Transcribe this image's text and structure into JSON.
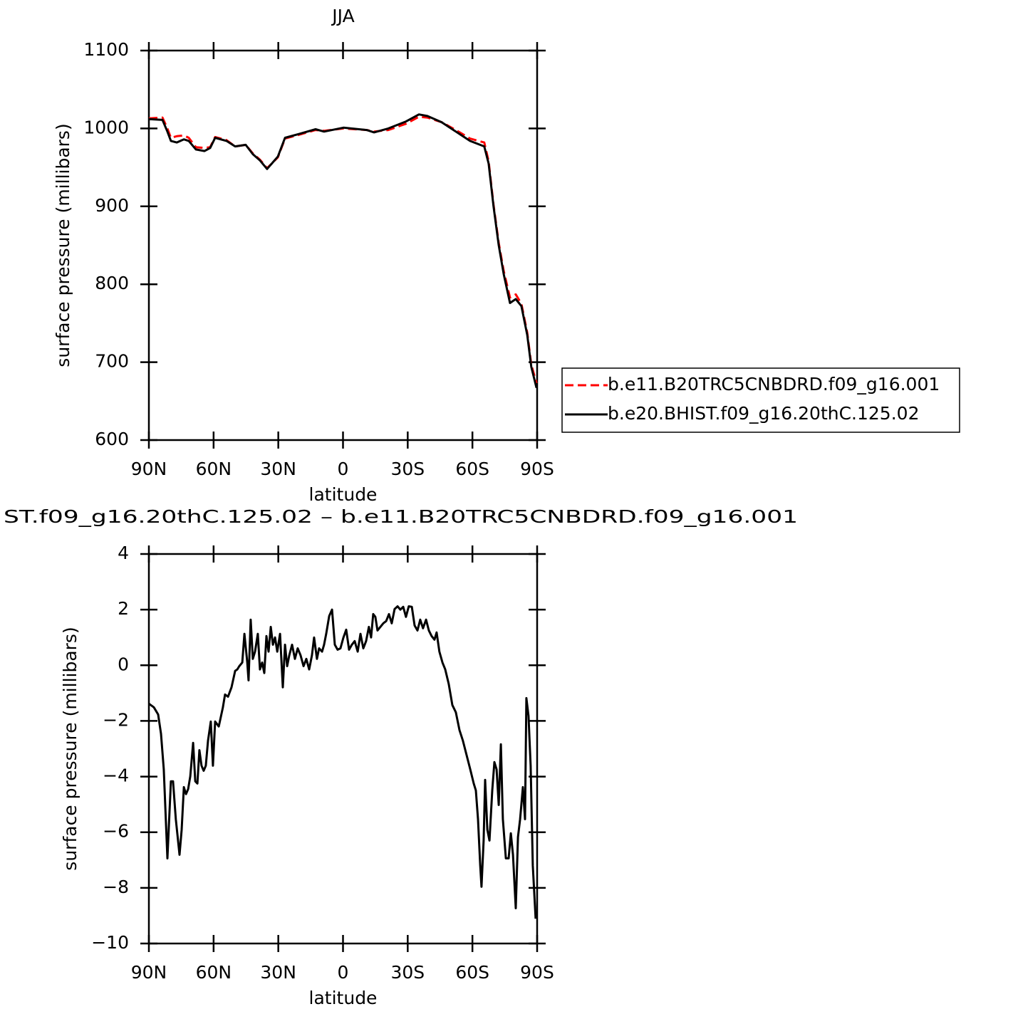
{
  "chart_data": [
    {
      "type": "line",
      "title": "JJA",
      "x_label": "latitude",
      "y_label": "surface pressure (millibars)",
      "xlim": [
        90,
        -90
      ],
      "ylim": [
        600,
        1100
      ],
      "xticks": [
        {
          "value": 90,
          "label": "90N"
        },
        {
          "value": 60,
          "label": "60N"
        },
        {
          "value": 30,
          "label": "30N"
        },
        0,
        {
          "value": -30,
          "label": "30S"
        },
        {
          "value": -60,
          "label": "60S"
        },
        {
          "value": -90,
          "label": "90S"
        }
      ],
      "yticks": [
        600,
        700,
        800,
        900,
        1000,
        1100
      ],
      "legend": "right",
      "x": [
        90,
        83.7,
        81.4,
        79.8,
        77.1,
        73.8,
        71.5,
        68.2,
        64.2,
        61.6,
        59.3,
        54,
        50,
        45.1,
        41.8,
        38.5,
        35.2,
        30.2,
        26.9,
        20.3,
        12.7,
        8.8,
        -0.2,
        -11,
        -14.4,
        -21,
        -29.2,
        -35.2,
        -39.1,
        -45.7,
        -52.3,
        -58.9,
        -65.5,
        -67.5,
        -69.8,
        -72.2,
        -74.5,
        -77.4,
        -80.1,
        -82.7,
        -85.4,
        -87.3,
        -89.7
      ],
      "series": [
        {
          "name": "b.e11.B20TRC5CNBDRD.f09_g16.001",
          "color": "#ff0000",
          "linestyle": "dashed",
          "values": [
            1013,
            1014,
            1000,
            988,
            990,
            991,
            988,
            976,
            975,
            976,
            989,
            985,
            977,
            979,
            968,
            960,
            949,
            963,
            987,
            992,
            998,
            997,
            1000,
            998,
            996,
            998,
            1006,
            1015,
            1014,
            1008,
            998,
            987,
            982,
            958,
            902,
            853,
            817,
            783,
            787,
            775,
            738,
            697,
            673
          ]
        },
        {
          "name": "b.e20.BHIST.f09_g16.20thC.125.02",
          "color": "#000000",
          "linestyle": "solid",
          "values": [
            1012,
            1011,
            996,
            984,
            982,
            986,
            984,
            973,
            971,
            975,
            988,
            984,
            977,
            979,
            967,
            959,
            948,
            964,
            988,
            993,
            999,
            996,
            1001,
            998,
            995,
            1000,
            1009,
            1018,
            1016,
            1008,
            996,
            984,
            977,
            955,
            900,
            850,
            813,
            776,
            781,
            772,
            735,
            694,
            667
          ]
        }
      ]
    },
    {
      "type": "line",
      "title": "ST.f09_g16.20thC.125.02 – b.e11.B20TRC5CNBDRD.f09_g16.001",
      "x_label": "latitude",
      "y_label": "surface pressure (millibars)",
      "xlim": [
        90,
        -90
      ],
      "ylim": [
        -10,
        4
      ],
      "xticks": [
        {
          "value": 90,
          "label": "90N"
        },
        {
          "value": 60,
          "label": "60N"
        },
        {
          "value": 30,
          "label": "30N"
        },
        0,
        {
          "value": -30,
          "label": "30S"
        },
        {
          "value": -60,
          "label": "60S"
        },
        {
          "value": -90,
          "label": "90S"
        }
      ],
      "yticks": [
        {
          "value": -10,
          "label": "−10"
        },
        {
          "value": -8,
          "label": "−8"
        },
        {
          "value": -6,
          "label": "−6"
        },
        {
          "value": -4,
          "label": "−4"
        },
        {
          "value": -2,
          "label": "−2"
        },
        0,
        2,
        4
      ],
      "x": [
        90,
        87.7,
        85.7,
        84.4,
        83.1,
        81.4,
        79.8,
        78.8,
        77.5,
        75.8,
        74.8,
        73.8,
        72.8,
        71.8,
        70.8,
        69.5,
        68.5,
        67.5,
        66.6,
        65.6,
        64.6,
        63.6,
        62.6,
        61.3,
        60.3,
        59.3,
        57.6,
        55.7,
        54.7,
        53.3,
        51.7,
        50.0,
        49.0,
        48.1,
        46.7,
        45.7,
        44.4,
        43.8,
        42.8,
        41.8,
        40.8,
        39.5,
        38.5,
        37.5,
        36.5,
        35.5,
        34.5,
        33.5,
        32.5,
        31.5,
        30.5,
        29.2,
        27.9,
        26.9,
        25.9,
        24.9,
        23.6,
        22.3,
        21.0,
        19.7,
        18.3,
        17.0,
        15.7,
        14.4,
        13.4,
        12.1,
        11.1,
        9.7,
        8.8,
        7.8,
        6.4,
        5.1,
        3.8,
        2.5,
        1.2,
        -0.2,
        -1.5,
        -2.8,
        -4.1,
        -5.4,
        -6.8,
        -8.1,
        -9.4,
        -10.7,
        -12.0,
        -13.0,
        -14.0,
        -15.0,
        -16.0,
        -17.3,
        -18.7,
        -20.0,
        -21.3,
        -22.6,
        -23.9,
        -25.3,
        -26.6,
        -27.9,
        -29.2,
        -30.5,
        -31.9,
        -33.2,
        -34.5,
        -35.8,
        -37.1,
        -38.5,
        -39.8,
        -41.1,
        -42.4,
        -43.4,
        -44.7,
        -46.1,
        -47.4,
        -49.0,
        -50.7,
        -52.3,
        -54.0,
        -55.6,
        -57.3,
        -59.0,
        -60.6,
        -61.6,
        -62.6,
        -63.6,
        -64.2,
        -65.2,
        -65.9,
        -66.9,
        -67.9,
        -69.2,
        -70.2,
        -71.2,
        -72.2,
        -73.2,
        -74.1,
        -75.5,
        -76.8,
        -77.8,
        -78.8,
        -80.1,
        -81.1,
        -82.1,
        -83.4,
        -84.4,
        -85.0,
        -86.0,
        -87.0,
        -88.0,
        -89.3
      ],
      "series": [
        {
          "color": "#000000",
          "linestyle": "solid",
          "values": [
            -1.38,
            -1.51,
            -1.77,
            -2.46,
            -3.74,
            -6.94,
            -4.17,
            -4.17,
            -5.53,
            -6.81,
            -5.91,
            -4.38,
            -4.63,
            -4.45,
            -3.99,
            -2.79,
            -4.17,
            -4.25,
            -3.05,
            -3.61,
            -3.79,
            -3.61,
            -2.71,
            -2.02,
            -3.61,
            -2.02,
            -2.2,
            -1.51,
            -1.05,
            -1.13,
            -0.79,
            -0.2,
            -0.15,
            -0.03,
            0.1,
            1.13,
            0.1,
            -0.54,
            1.64,
            0.23,
            0.49,
            1.13,
            -0.15,
            0.1,
            -0.28,
            1.05,
            0.49,
            1.38,
            0.74,
            1.0,
            0.49,
            1.13,
            -0.79,
            0.74,
            -0.03,
            0.36,
            0.74,
            0.23,
            0.61,
            0.36,
            -0.03,
            0.23,
            -0.15,
            0.36,
            1.0,
            0.23,
            0.61,
            0.49,
            0.74,
            1.13,
            1.77,
            2.0,
            0.74,
            0.56,
            0.61,
            1.0,
            1.28,
            0.56,
            0.74,
            0.87,
            0.49,
            1.13,
            0.61,
            0.87,
            1.38,
            1.0,
            1.84,
            1.74,
            1.25,
            1.38,
            1.51,
            1.59,
            1.84,
            1.51,
            2.02,
            2.12,
            2.0,
            2.1,
            1.74,
            2.12,
            2.1,
            1.43,
            1.25,
            1.64,
            1.33,
            1.64,
            1.25,
            1.05,
            0.92,
            1.18,
            0.49,
            0.1,
            -0.15,
            -0.67,
            -1.43,
            -1.69,
            -2.33,
            -2.71,
            -3.23,
            -3.74,
            -4.25,
            -4.5,
            -5.53,
            -7.19,
            -7.96,
            -6.3,
            -4.12,
            -5.91,
            -6.3,
            -4.5,
            -3.48,
            -3.74,
            -5.02,
            -2.84,
            -5.53,
            -6.94,
            -6.94,
            -6.04,
            -6.81,
            -8.73,
            -6.17,
            -5.53,
            -4.38,
            -5.53,
            -1.18,
            -1.82,
            -3.61,
            -7.19,
            -9.11
          ]
        }
      ]
    }
  ]
}
